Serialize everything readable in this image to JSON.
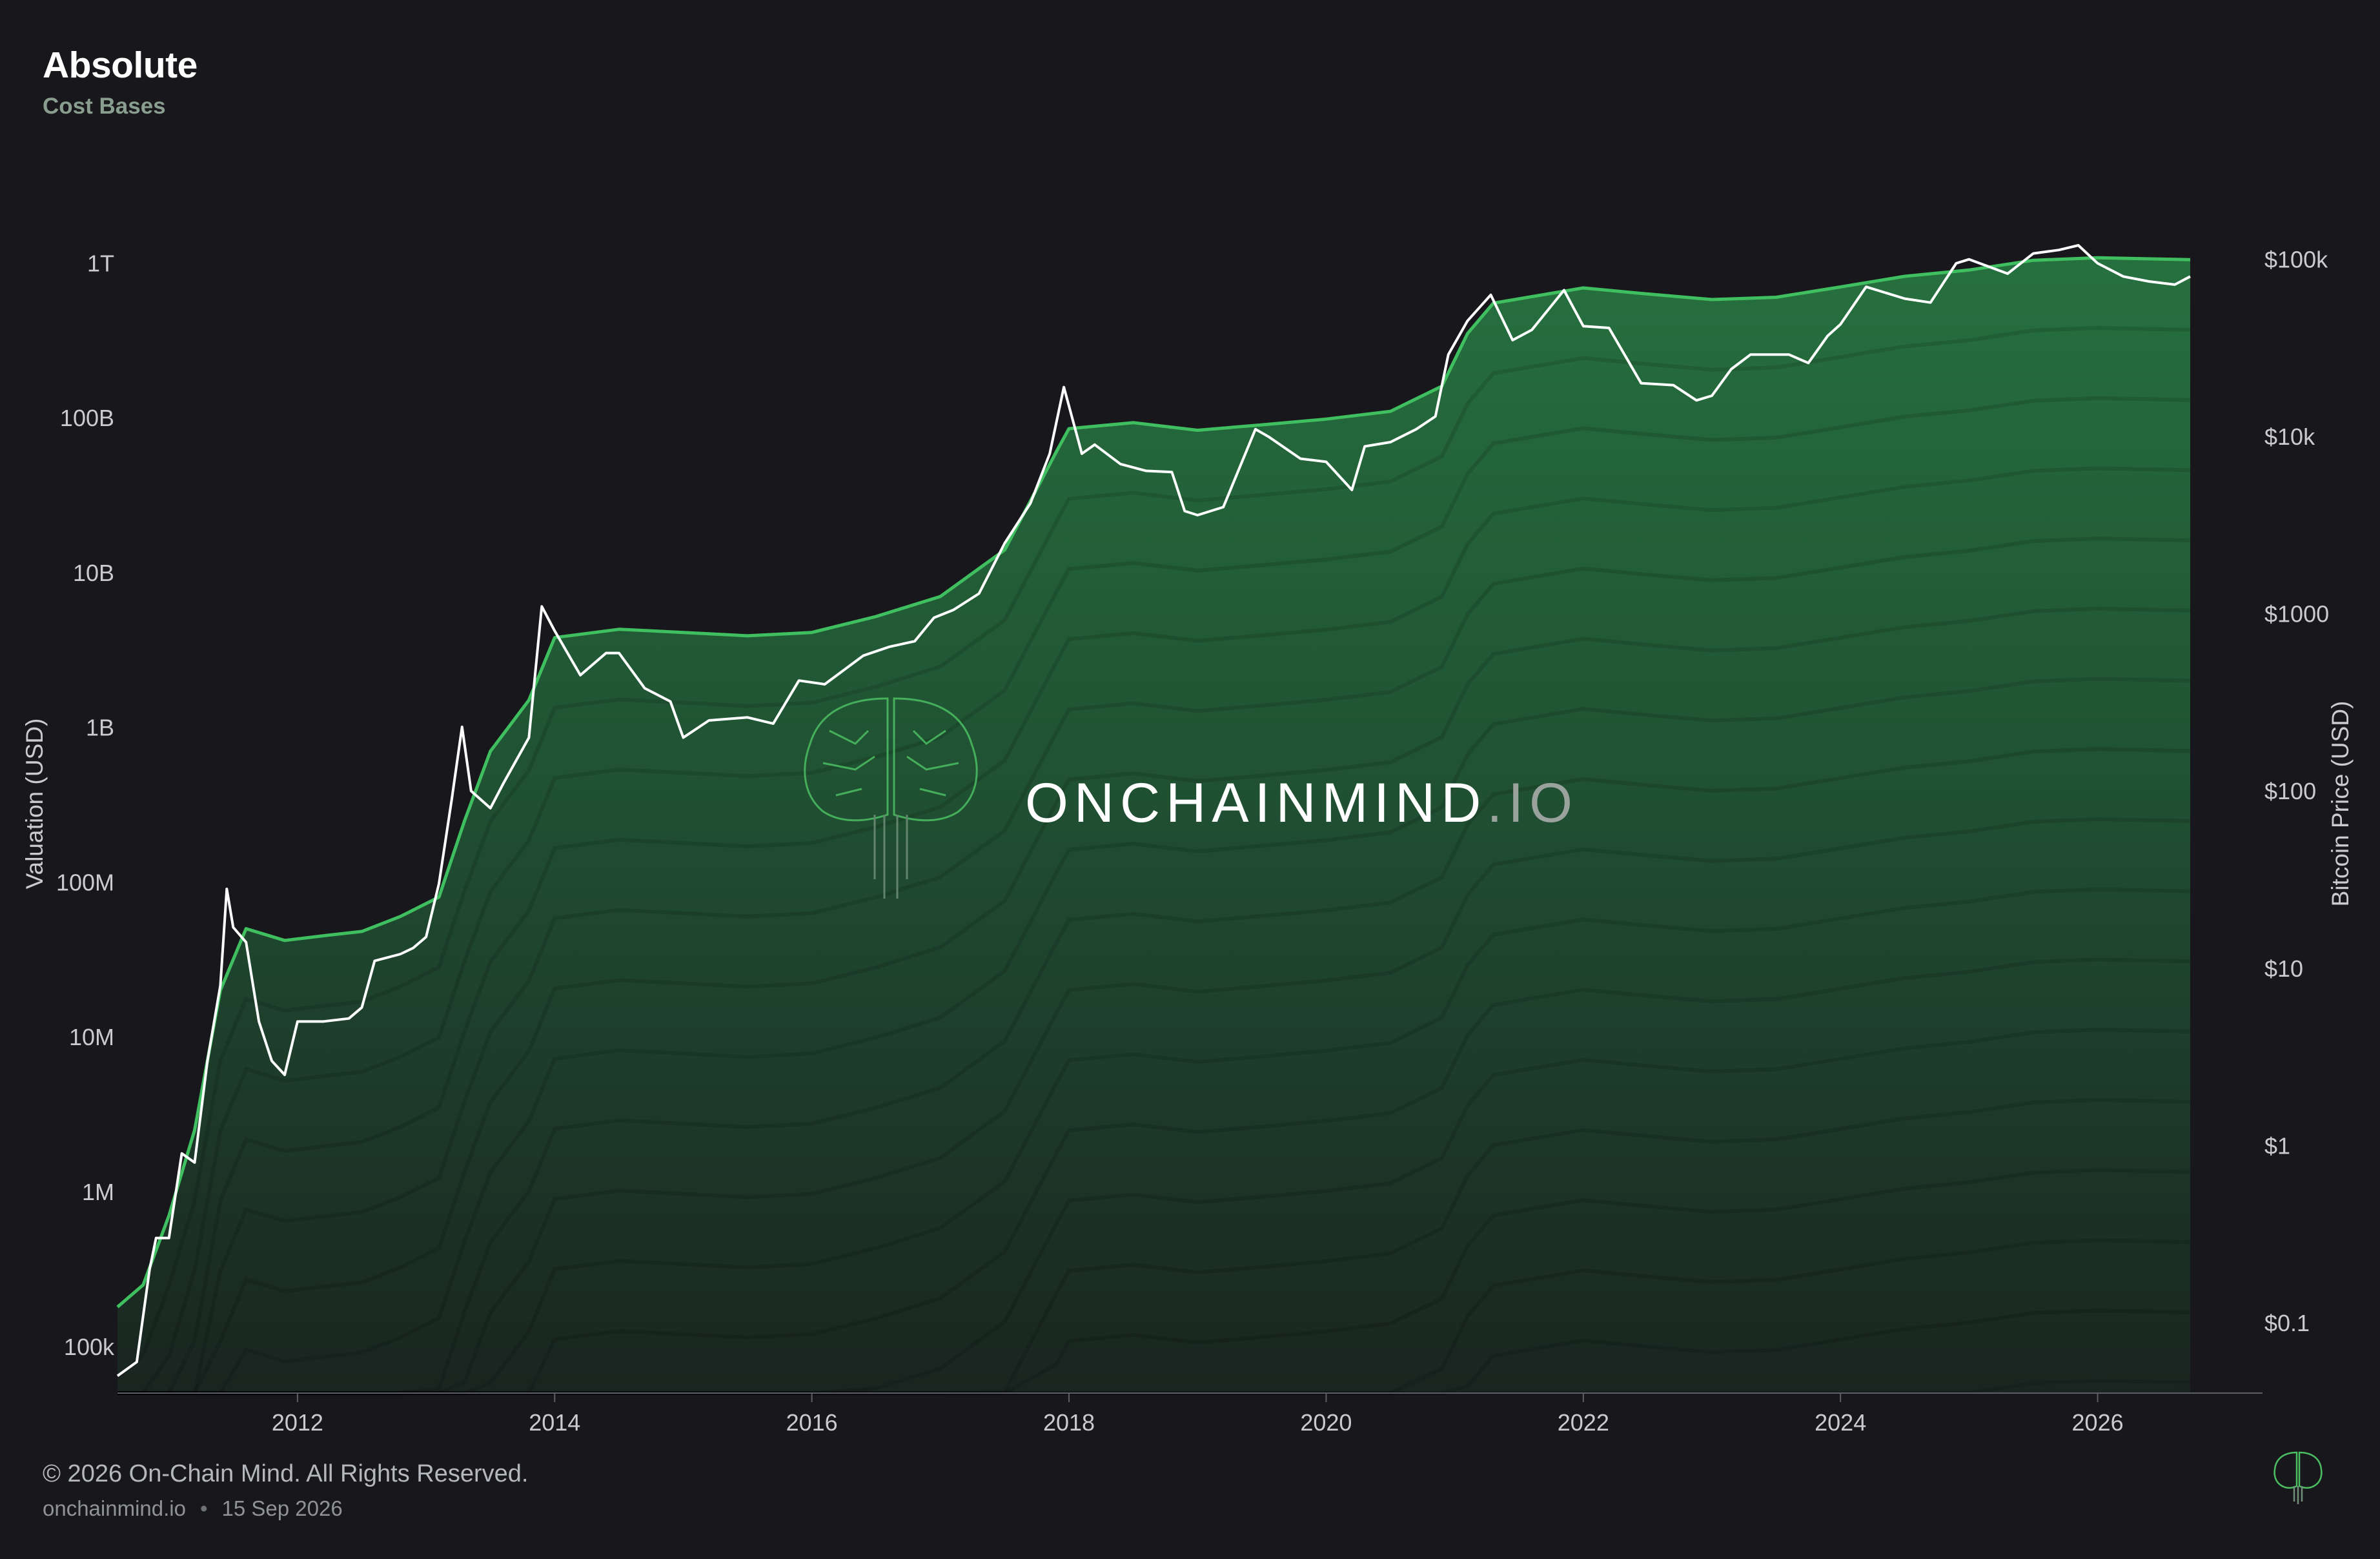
{
  "header": {
    "title": "Absolute",
    "subtitle": "Cost Bases"
  },
  "watermark": {
    "brand": "ONCHAINMIND",
    "suffix": ".IO",
    "icon": "brain-circuit-icon"
  },
  "footer": {
    "copyright": "© 2026 On-Chain Mind. All Rights Reserved.",
    "site": "onchainmind.io",
    "separator": "•",
    "date": "15 Sep 2026",
    "logo_icon": "brain-logo-icon"
  },
  "colors": {
    "background": "#18181c",
    "price_line": "#ffffff",
    "top_band_line": "#3fbf5f",
    "band_top": "#246a3c",
    "band_bottom": "#1a2520"
  },
  "chart_data": {
    "type": "area",
    "title": "",
    "ylabel_left": "Valuation (USD)",
    "ylabel_right": "Bitcoin Price (USD)",
    "x_ticks": [
      "2012",
      "2014",
      "2016",
      "2018",
      "2020",
      "2022",
      "2024",
      "2026"
    ],
    "y_left_ticks": [
      "100k",
      "1M",
      "10M",
      "100M",
      "1B",
      "10B",
      "100B",
      "1T"
    ],
    "y_left_values": [
      100000,
      1000000,
      10000000,
      100000000,
      1000000000,
      10000000000,
      100000000000,
      1000000000000
    ],
    "y_right_ticks": [
      "$0.1",
      "$1",
      "$10",
      "$100",
      "$1000",
      "$10k",
      "$100k"
    ],
    "y_right_values": [
      0.1,
      1,
      10,
      100,
      1000,
      10000,
      100000
    ],
    "x_range": [
      2010.6,
      2026.72
    ],
    "y_left_range": [
      50000,
      1300000000000
    ],
    "y_right_range": [
      0.04,
      120000
    ],
    "scale": "log",
    "grid": false,
    "series": [
      {
        "name": "",
        "axis": "left",
        "style": "cost-basis top band",
        "points": [
          [
            2010.6,
            180000
          ],
          [
            2010.8,
            250000
          ],
          [
            2011.0,
            700000
          ],
          [
            2011.2,
            2500000
          ],
          [
            2011.4,
            20000000
          ],
          [
            2011.6,
            50000000
          ],
          [
            2011.9,
            42000000
          ],
          [
            2012.2,
            45000000
          ],
          [
            2012.5,
            48000000
          ],
          [
            2012.8,
            60000000
          ],
          [
            2013.1,
            80000000
          ],
          [
            2013.3,
            250000000
          ],
          [
            2013.5,
            700000000
          ],
          [
            2013.8,
            1500000000
          ],
          [
            2014.0,
            3800000000
          ],
          [
            2014.5,
            4300000000
          ],
          [
            2015.0,
            4100000000
          ],
          [
            2015.5,
            3900000000
          ],
          [
            2016.0,
            4100000000
          ],
          [
            2016.5,
            5200000000
          ],
          [
            2017.0,
            7000000000
          ],
          [
            2017.5,
            14000000000
          ],
          [
            2017.9,
            60000000000
          ],
          [
            2018.0,
            85000000000
          ],
          [
            2018.5,
            93000000000
          ],
          [
            2019.0,
            83000000000
          ],
          [
            2019.5,
            90000000000
          ],
          [
            2020.0,
            98000000000
          ],
          [
            2020.5,
            110000000000
          ],
          [
            2020.9,
            160000000000
          ],
          [
            2021.1,
            350000000000
          ],
          [
            2021.3,
            550000000000
          ],
          [
            2022.0,
            690000000000
          ],
          [
            2022.5,
            630000000000
          ],
          [
            2023.0,
            580000000000
          ],
          [
            2023.5,
            600000000000
          ],
          [
            2024.0,
            700000000000
          ],
          [
            2024.5,
            820000000000
          ],
          [
            2025.0,
            900000000000
          ],
          [
            2025.5,
            1040000000000
          ],
          [
            2026.0,
            1080000000000
          ],
          [
            2026.72,
            1050000000000
          ]
        ]
      },
      {
        "name": "",
        "axis": "right",
        "style": "bitcoin price",
        "points": [
          [
            2010.6,
            0.05
          ],
          [
            2010.75,
            0.06
          ],
          [
            2010.85,
            0.2
          ],
          [
            2010.9,
            0.3
          ],
          [
            2011.0,
            0.3
          ],
          [
            2011.1,
            0.9
          ],
          [
            2011.2,
            0.8
          ],
          [
            2011.3,
            3
          ],
          [
            2011.4,
            8
          ],
          [
            2011.45,
            28
          ],
          [
            2011.5,
            17
          ],
          [
            2011.6,
            14
          ],
          [
            2011.7,
            5
          ],
          [
            2011.8,
            3
          ],
          [
            2011.9,
            2.5
          ],
          [
            2012.0,
            5
          ],
          [
            2012.2,
            5
          ],
          [
            2012.4,
            5.2
          ],
          [
            2012.5,
            6
          ],
          [
            2012.6,
            11
          ],
          [
            2012.8,
            12
          ],
          [
            2012.9,
            13
          ],
          [
            2013.0,
            15
          ],
          [
            2013.1,
            30
          ],
          [
            2013.2,
            90
          ],
          [
            2013.28,
            230
          ],
          [
            2013.35,
            100
          ],
          [
            2013.5,
            80
          ],
          [
            2013.6,
            110
          ],
          [
            2013.8,
            200
          ],
          [
            2013.9,
            1100
          ],
          [
            2014.0,
            800
          ],
          [
            2014.2,
            450
          ],
          [
            2014.4,
            600
          ],
          [
            2014.5,
            600
          ],
          [
            2014.7,
            380
          ],
          [
            2014.9,
            320
          ],
          [
            2015.0,
            200
          ],
          [
            2015.2,
            250
          ],
          [
            2015.5,
            260
          ],
          [
            2015.7,
            240
          ],
          [
            2015.9,
            420
          ],
          [
            2016.1,
            400
          ],
          [
            2016.4,
            580
          ],
          [
            2016.6,
            650
          ],
          [
            2016.8,
            700
          ],
          [
            2016.95,
            950
          ],
          [
            2017.1,
            1050
          ],
          [
            2017.3,
            1300
          ],
          [
            2017.5,
            2500
          ],
          [
            2017.7,
            4200
          ],
          [
            2017.85,
            8000
          ],
          [
            2017.96,
            19000
          ],
          [
            2018.1,
            8000
          ],
          [
            2018.2,
            9000
          ],
          [
            2018.4,
            7000
          ],
          [
            2018.6,
            6400
          ],
          [
            2018.8,
            6300
          ],
          [
            2018.9,
            3800
          ],
          [
            2019.0,
            3600
          ],
          [
            2019.2,
            4000
          ],
          [
            2019.45,
            11000
          ],
          [
            2019.55,
            10000
          ],
          [
            2019.8,
            7500
          ],
          [
            2020.0,
            7200
          ],
          [
            2020.2,
            5000
          ],
          [
            2020.3,
            8800
          ],
          [
            2020.5,
            9300
          ],
          [
            2020.7,
            11000
          ],
          [
            2020.85,
            13000
          ],
          [
            2020.95,
            29000
          ],
          [
            2021.1,
            45000
          ],
          [
            2021.28,
            63000
          ],
          [
            2021.45,
            35000
          ],
          [
            2021.6,
            40000
          ],
          [
            2021.85,
            67000
          ],
          [
            2022.0,
            42000
          ],
          [
            2022.2,
            41000
          ],
          [
            2022.45,
            20000
          ],
          [
            2022.7,
            19500
          ],
          [
            2022.88,
            16000
          ],
          [
            2023.0,
            17000
          ],
          [
            2023.15,
            24000
          ],
          [
            2023.3,
            29000
          ],
          [
            2023.6,
            29000
          ],
          [
            2023.75,
            26000
          ],
          [
            2023.9,
            37000
          ],
          [
            2024.0,
            43000
          ],
          [
            2024.2,
            70000
          ],
          [
            2024.5,
            60000
          ],
          [
            2024.7,
            57000
          ],
          [
            2024.9,
            95000
          ],
          [
            2025.0,
            100000
          ],
          [
            2025.3,
            83000
          ],
          [
            2025.5,
            108000
          ],
          [
            2025.7,
            113000
          ],
          [
            2025.85,
            120000
          ],
          [
            2026.0,
            95000
          ],
          [
            2026.2,
            80000
          ],
          [
            2026.4,
            75000
          ],
          [
            2026.6,
            72000
          ],
          [
            2026.72,
            80000
          ]
        ]
      }
    ]
  }
}
